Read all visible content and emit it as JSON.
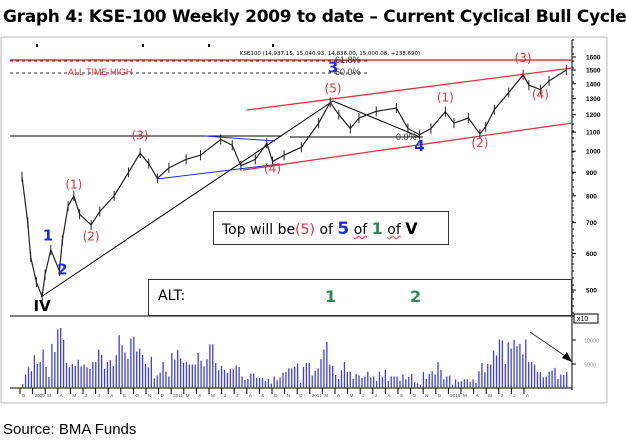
{
  "title": "Graph 4: KSE-100 Weekly 2009 to date – Current Cyclical Bull Cycle",
  "source": "Source: BMA Funds",
  "chart_data": {
    "type": "line",
    "title": "Graph 4: KSE-100 Weekly 2009 to date – Current Cyclical Bull Cycle",
    "header": "KSE100 (14,937.15, 15,040.93, 14,836.00, 15,000.08, +238.690)",
    "yscale": "log",
    "ylim": [
      480,
      1620
    ],
    "y_ticks": [
      1600,
      1500,
      1400,
      1300,
      1200,
      1100,
      1000,
      900,
      800,
      700,
      600,
      500
    ],
    "volume_ticks": [
      10000,
      5000
    ],
    "volume_multiplier_label": "x10",
    "x_ticks": [
      "D",
      "2009",
      "M",
      "A",
      "M",
      "J",
      "J",
      "A",
      "S",
      "O",
      "N",
      "D",
      "2011",
      "M",
      "A",
      "M",
      "J",
      "J",
      "A",
      "S",
      "O",
      "N",
      "D",
      "2011",
      "M",
      "A",
      "M",
      "J",
      "J",
      "A",
      "S",
      "O",
      "N",
      "D",
      "2015",
      "M",
      "A",
      "M",
      "J",
      "J",
      "A"
    ],
    "price": [
      [
        0,
        880
      ],
      [
        2,
        700
      ],
      [
        3,
        590
      ],
      [
        5,
        520
      ],
      [
        7,
        483
      ],
      [
        8,
        540
      ],
      [
        10,
        611
      ],
      [
        13,
        550
      ],
      [
        14,
        640
      ],
      [
        16,
        760
      ],
      [
        18,
        800
      ],
      [
        20,
        730
      ],
      [
        24,
        692
      ],
      [
        27,
        740
      ],
      [
        32,
        800
      ],
      [
        37,
        900
      ],
      [
        41,
        990
      ],
      [
        44,
        940
      ],
      [
        47,
        873
      ],
      [
        51,
        920
      ],
      [
        57,
        960
      ],
      [
        62,
        980
      ],
      [
        69,
        1060
      ],
      [
        73,
        1030
      ],
      [
        76,
        930
      ],
      [
        81,
        960
      ],
      [
        85,
        1040
      ],
      [
        87,
        950
      ],
      [
        91,
        980
      ],
      [
        97,
        1020
      ],
      [
        103,
        1150
      ],
      [
        107,
        1276
      ],
      [
        110,
        1200
      ],
      [
        114,
        1120
      ],
      [
        117,
        1180
      ],
      [
        123,
        1220
      ],
      [
        130,
        1240
      ],
      [
        134,
        1120
      ],
      [
        138,
        1086
      ],
      [
        142,
        1120
      ],
      [
        147,
        1218
      ],
      [
        150,
        1150
      ],
      [
        155,
        1180
      ],
      [
        159,
        1090
      ],
      [
        161,
        1130
      ],
      [
        164,
        1230
      ],
      [
        169,
        1340
      ],
      [
        174,
        1464
      ],
      [
        176,
        1390
      ],
      [
        180,
        1360
      ],
      [
        183,
        1420
      ],
      [
        189,
        1500
      ]
    ],
    "volume_thousands": [
      0.8,
      2.8,
      4.3,
      3.5,
      6.8,
      5,
      5.4,
      8,
      4.4,
      2.3,
      9.2,
      7.5,
      12.2,
      12.5,
      10,
      5.2,
      4.3,
      5,
      4.6,
      5.9,
      4.5,
      4.9,
      4.3,
      4,
      5.4,
      5.4,
      8,
      6.9,
      4,
      5.4,
      5.8,
      4.6,
      6.8,
      11,
      8.9,
      7.4,
      6,
      10.3,
      10.7,
      7.6,
      8.2,
      6.9,
      5,
      4.3,
      6.5,
      2,
      2.6,
      3.2,
      5.4,
      3.4,
      2.4,
      7.3,
      5.9,
      7.9,
      6.2,
      5.2,
      5.4,
      4.9,
      4.9,
      4.9,
      7.3,
      5.7,
      4.5,
      6,
      9.1,
      9.1,
      5.2,
      3.7,
      4.6,
      3.8,
      3.1,
      3.9,
      3.9,
      4.7,
      4.4,
      2.4,
      1.7,
      1.9,
      3,
      3,
      2.1,
      2.1,
      2.1,
      1.5,
      1.9,
      0.9,
      2.4,
      1.6,
      2.2,
      3.2,
      3.3,
      4.1,
      4.1,
      4.4,
      5.1,
      1.1,
      4.4,
      5.2,
      5.2,
      2.6,
      3.6,
      4.1,
      6,
      8,
      9.6,
      4.9,
      4.6,
      2.7,
      1.9,
      3.7,
      5.4,
      3.3,
      3.4,
      1.9,
      2.9,
      2.6,
      2.1,
      2.4,
      3.4,
      2.2,
      2.4,
      1.5,
      3.4,
      2.2,
      3.8,
      1.5,
      2.4,
      2.4,
      2.4,
      1.5,
      2.8,
      1.8,
      2.3,
      2.9,
      1.2,
      1,
      0.6,
      3.3,
      1.9,
      2.9,
      3.5,
      2.8,
      5.4,
      3.8,
      1.8,
      2.4,
      2.6,
      0.7,
      1.8,
      1.3,
      1.4,
      1.8,
      1.8,
      1.3,
      1.8,
      1,
      3.5,
      5.2,
      3.3,
      5,
      4.9,
      7.8,
      6.8,
      10.1,
      9.9,
      5,
      9.5,
      8.2,
      10,
      8.7,
      9.2,
      7,
      10.1,
      5.4,
      5.4,
      4.9,
      3.3,
      3.3,
      2.2,
      2.4,
      3.4,
      3.6,
      4.2,
      1.9,
      2.8,
      2.7,
      3.3
    ],
    "fib_levels": [
      {
        "label": "61.8%",
        "value": 1600
      },
      {
        "label": "50.0%",
        "value": 1505
      },
      {
        "label": "0.0%",
        "value": 1080
      }
    ],
    "annotations": {
      "all_time_high": "ALL TIME HIGH",
      "waves": [
        {
          "text": "(1)",
          "color": "red",
          "week": 18,
          "price": 830
        },
        {
          "text": "(2)",
          "color": "red",
          "week": 24,
          "price": 640
        },
        {
          "text": "(3)",
          "color": "red",
          "week": 41,
          "price": 1060
        },
        {
          "text": "(4)",
          "color": "red",
          "week": 87,
          "price": 900
        },
        {
          "text": "(5)",
          "color": "red",
          "week": 108,
          "price": 1340
        },
        {
          "text": "3",
          "color": "blue",
          "week": 108,
          "price": 1480
        },
        {
          "text": "(1)",
          "color": "red",
          "week": 147,
          "price": 1280
        },
        {
          "text": "(2)",
          "color": "red",
          "week": 159,
          "price": 1020
        },
        {
          "text": "(3)",
          "color": "red",
          "week": 174,
          "price": 1560
        },
        {
          "text": "(4)",
          "color": "red",
          "week": 180,
          "price": 1300
        },
        {
          "text": "4",
          "color": "blue",
          "week": 138,
          "price": 1000
        },
        {
          "text": "1",
          "color": "blue",
          "week": 9,
          "price": 640
        },
        {
          "text": "2",
          "color": "blue",
          "week": 14,
          "price": 540
        },
        {
          "text": "IV",
          "color": "black",
          "week": 7,
          "price": 450
        }
      ]
    }
  },
  "top_box": {
    "t1": "Top will be",
    "t2": "(5)",
    "t3": "of",
    "t4": "5",
    "t5": "of",
    "t6": "1",
    "t7": "of",
    "t8": "V"
  },
  "alt_box": {
    "label": "ALT:",
    "w1": "1",
    "w2": "2"
  }
}
